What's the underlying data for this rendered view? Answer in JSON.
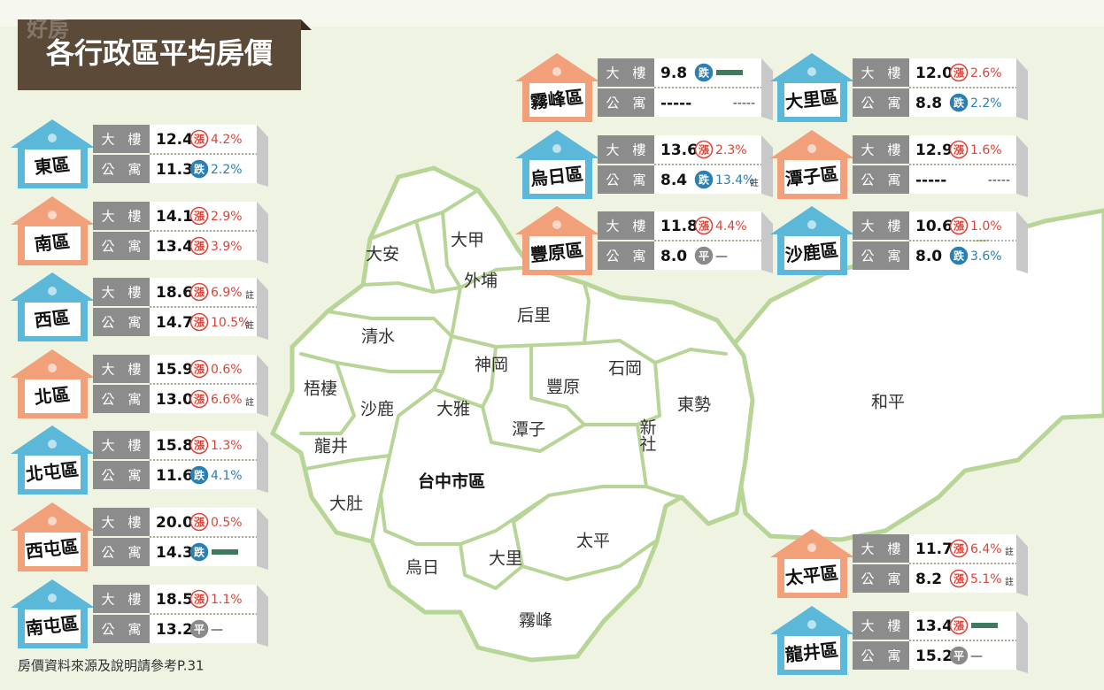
{
  "title": "各行政區平均房價",
  "watermark": "好房",
  "footnote": "房價資料來源及說明請參考P.31",
  "row_labels": [
    "大　樓",
    "公　寓"
  ],
  "districts": [
    {
      "name": "東區",
      "color": "#5bb8d8",
      "building": {
        "price": "12.4",
        "trend": "漲",
        "change": "4.2%"
      },
      "apartment": {
        "price": "11.3",
        "trend": "跌",
        "change": "2.2%"
      }
    },
    {
      "name": "南區",
      "color": "#f2a07a",
      "building": {
        "price": "14.1",
        "trend": "漲",
        "change": "2.9%"
      },
      "apartment": {
        "price": "13.4",
        "trend": "漲",
        "change": "3.9%"
      }
    },
    {
      "name": "西區",
      "color": "#5bb8d8",
      "building": {
        "price": "18.6",
        "trend": "漲",
        "change": "6.9%",
        "note": "註"
      },
      "apartment": {
        "price": "14.7",
        "trend": "漲",
        "change": "10.5%",
        "note": "註"
      }
    },
    {
      "name": "北區",
      "color": "#f2a07a",
      "building": {
        "price": "15.9",
        "trend": "漲",
        "change": "0.6%"
      },
      "apartment": {
        "price": "13.0",
        "trend": "漲",
        "change": "6.6%",
        "note": "註"
      }
    },
    {
      "name": "北屯區",
      "color": "#5bb8d8",
      "building": {
        "price": "15.8",
        "trend": "漲",
        "change": "1.3%"
      },
      "apartment": {
        "price": "11.6",
        "trend": "跌",
        "change": "4.1%"
      }
    },
    {
      "name": "西屯區",
      "color": "#f2a07a",
      "building": {
        "price": "20.0",
        "trend": "漲",
        "change": "0.5%"
      },
      "apartment": {
        "price": "14.3",
        "trend": "跌"
      }
    },
    {
      "name": "南屯區",
      "color": "#5bb8d8",
      "building": {
        "price": "18.5",
        "trend": "漲",
        "change": "1.1%"
      },
      "apartment": {
        "price": "13.2",
        "trend": "平",
        "change": "—"
      }
    },
    {
      "name": "霧峰區",
      "color": "#f2a07a",
      "building": {
        "price": "9.8",
        "trend": "跌"
      },
      "apartment": {
        "price": "-----",
        "change": "-----"
      }
    },
    {
      "name": "烏日區",
      "color": "#5bb8d8",
      "building": {
        "price": "13.6",
        "trend": "漲",
        "change": "2.3%"
      },
      "apartment": {
        "price": "8.4",
        "trend": "跌",
        "change": "13.4%",
        "note": "註"
      }
    },
    {
      "name": "豐原區",
      "color": "#f2a07a",
      "building": {
        "price": "11.8",
        "trend": "漲",
        "change": "4.4%"
      },
      "apartment": {
        "price": "8.0",
        "trend": "平",
        "change": "—"
      }
    },
    {
      "name": "大里區",
      "color": "#5bb8d8",
      "building": {
        "price": "12.0",
        "trend": "漲",
        "change": "2.6%"
      },
      "apartment": {
        "price": "8.8",
        "trend": "跌",
        "change": "2.2%"
      }
    },
    {
      "name": "潭子區",
      "color": "#f2a07a",
      "building": {
        "price": "12.9",
        "trend": "漲",
        "change": "1.6%"
      },
      "apartment": {
        "price": "-----",
        "change": "-----"
      }
    },
    {
      "name": "沙鹿區",
      "color": "#5bb8d8",
      "building": {
        "price": "10.6",
        "trend": "漲",
        "change": "1.0%"
      },
      "apartment": {
        "price": "8.0",
        "trend": "跌",
        "change": "3.6%"
      }
    },
    {
      "name": "太平區",
      "color": "#f2a07a",
      "building": {
        "price": "11.7",
        "trend": "漲",
        "change": "6.4%",
        "note": "註"
      },
      "apartment": {
        "price": "8.2",
        "trend": "漲",
        "change": "5.1%",
        "note": "註"
      }
    },
    {
      "name": "龍井區",
      "color": "#5bb8d8",
      "building": {
        "price": "13.4",
        "trend": "漲"
      },
      "apartment": {
        "price": "15.2",
        "trend": "平",
        "change": "—"
      }
    }
  ],
  "map_labels": [
    "大安",
    "大甲",
    "外埔",
    "后里",
    "清水",
    "神岡",
    "豐原",
    "石岡",
    "東勢",
    "和平",
    "梧棲",
    "沙鹿",
    "大雅",
    "潭子",
    "新社",
    "龍井",
    "台中市區",
    "大肚",
    "太平",
    "烏日",
    "大里",
    "霧峰"
  ]
}
